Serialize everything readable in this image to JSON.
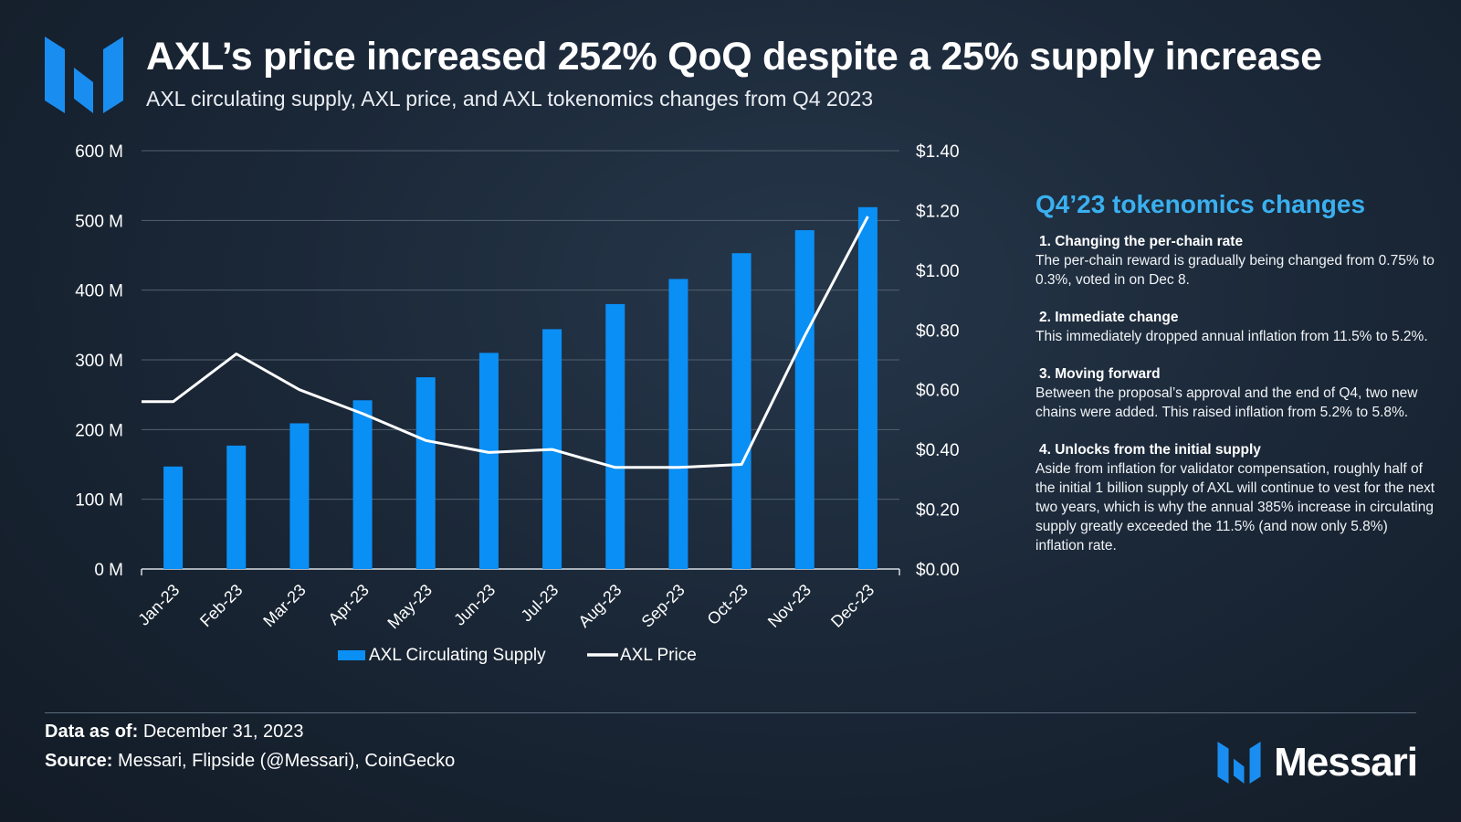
{
  "header": {
    "title": "AXL’s price increased 252% QoQ despite a 25% supply increase",
    "subtitle": "AXL circulating supply, AXL price, and AXL tokenomics changes from Q4 2023"
  },
  "colors": {
    "bar": "#0a8ff5",
    "line": "#ffffff",
    "accent": "#3ab0f0"
  },
  "chart_data": {
    "type": "bar",
    "categories": [
      "Jan-23",
      "Feb-23",
      "Mar-23",
      "Apr-23",
      "May-23",
      "Jun-23",
      "Jul-23",
      "Aug-23",
      "Sep-23",
      "Oct-23",
      "Nov-23",
      "Dec-23"
    ],
    "series": [
      {
        "name": "AXL Circulating Supply",
        "type": "bar",
        "axis": "left",
        "values": [
          147,
          177,
          209,
          242,
          275,
          310,
          344,
          380,
          416,
          453,
          486,
          519
        ]
      },
      {
        "name": "AXL Price",
        "type": "line",
        "axis": "right",
        "values": [
          0.56,
          0.72,
          0.6,
          0.52,
          0.43,
          0.39,
          0.4,
          0.34,
          0.34,
          0.35,
          0.78,
          1.18
        ]
      }
    ],
    "left_axis": {
      "ylim": [
        0,
        600
      ],
      "ticks": [
        0,
        100,
        200,
        300,
        400,
        500,
        600
      ],
      "tick_labels": [
        "0 M",
        "100 M",
        "200 M",
        "300 M",
        "400 M",
        "500 M",
        "600 M"
      ]
    },
    "right_axis": {
      "ylim": [
        0,
        1.4
      ],
      "ticks": [
        0,
        0.2,
        0.4,
        0.6,
        0.8,
        1.0,
        1.2,
        1.4
      ],
      "tick_labels": [
        "$0.00",
        "$0.20",
        "$0.40",
        "$0.60",
        "$0.80",
        "$1.00",
        "$1.20",
        "$1.40"
      ]
    },
    "grid": true,
    "legend": "bottom"
  },
  "panel": {
    "title": "Q4’23 tokenomics changes",
    "items": [
      {
        "heading": "1. Changing the per-chain rate",
        "body": "The per-chain reward is gradually being changed from 0.75% to 0.3%, voted in on Dec 8."
      },
      {
        "heading": "2. Immediate change",
        "body": "This immediately dropped annual inflation from 11.5% to 5.2%."
      },
      {
        "heading": "3. Moving forward",
        "body": "Between the proposal’s approval and the end of Q4, two new chains were added. This raised inflation from 5.2% to 5.8%."
      },
      {
        "heading": "4. Unlocks from the initial supply",
        "body": "Aside from inflation for validator compensation, roughly half of the initial 1 billion supply of AXL will continue to vest for the next two years, which is why the annual 385% increase in circulating supply greatly exceeded the 11.5% (and now only 5.8%) inflation rate."
      }
    ]
  },
  "footer": {
    "date_label": "Data as of:",
    "date_value": "December 31, 2023",
    "source_label": "Source:",
    "source_value": "Messari, Flipside (@Messari), CoinGecko",
    "brand": "Messari"
  }
}
